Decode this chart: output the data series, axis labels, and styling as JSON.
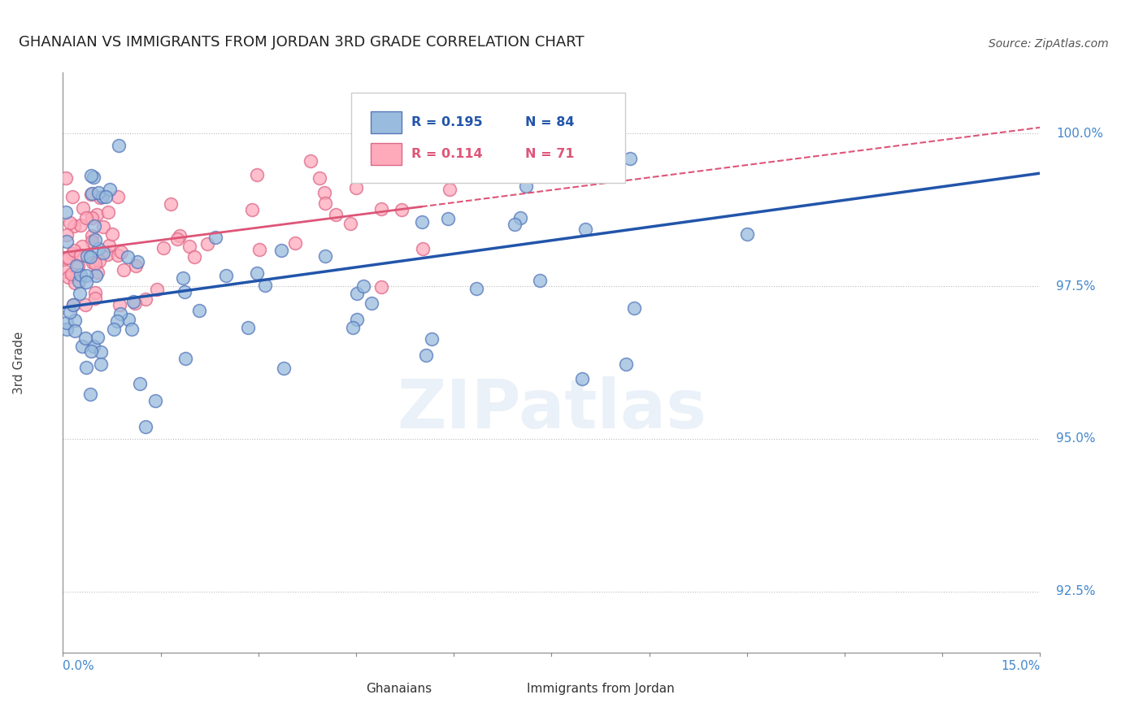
{
  "title": "GHANAIAN VS IMMIGRANTS FROM JORDAN 3RD GRADE CORRELATION CHART",
  "source": "Source: ZipAtlas.com",
  "ylabel": "3rd Grade",
  "yticks": [
    92.5,
    95.0,
    97.5,
    100.0
  ],
  "ytick_labels": [
    "92.5%",
    "95.0%",
    "97.5%",
    "100.0%"
  ],
  "xmin": 0.0,
  "xmax": 15.0,
  "ymin": 91.5,
  "ymax": 101.0,
  "blue_color": "#99BBDD",
  "blue_edge_color": "#5577BB",
  "pink_color": "#FFAABB",
  "pink_edge_color": "#DD6688",
  "blue_line_color": "#2255AA",
  "pink_line_color": "#DD5577",
  "axis_label_color": "#4488CC",
  "legend_R_blue": "R = 0.195",
  "legend_N_blue": "N = 84",
  "legend_R_pink": "R = 0.114",
  "legend_N_pink": "N = 71",
  "blue_line_x0": 0.0,
  "blue_line_y0": 97.15,
  "blue_line_x1": 15.0,
  "blue_line_y1": 99.35,
  "pink_line_x0": 0.0,
  "pink_line_y0": 98.05,
  "pink_line_x1": 15.0,
  "pink_line_y1": 100.1,
  "pink_solid_end_x": 5.5,
  "watermark_text": "ZIPatlas",
  "watermark_color": "#CCDDEE"
}
